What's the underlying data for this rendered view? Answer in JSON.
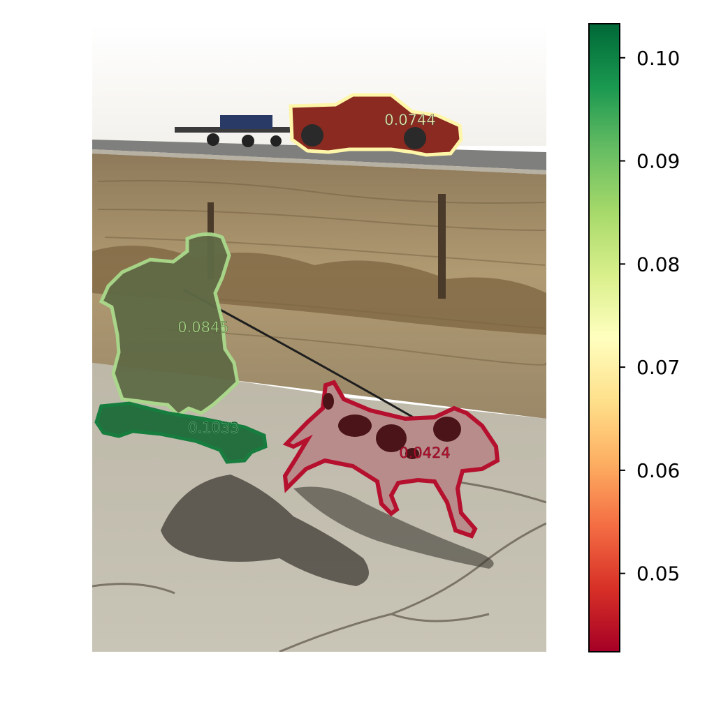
{
  "segments": [
    {
      "name": "truck",
      "score": "0.0744",
      "color": "#fef6a8"
    },
    {
      "name": "person",
      "score": "0.0845",
      "color": "#a9d98b"
    },
    {
      "name": "skateboard",
      "score": "0.1033",
      "color": "#0f7a3a"
    },
    {
      "name": "dog",
      "score": "0.0424",
      "color": "#b5102e"
    }
  ],
  "colorbar": {
    "colormap": "RdYlGn",
    "range": [
      0.0424,
      0.1033
    ],
    "ticks": [
      "0.05",
      "0.06",
      "0.07",
      "0.08",
      "0.09",
      "0.10"
    ],
    "tick_values": [
      0.05,
      0.06,
      0.07,
      0.08,
      0.09,
      0.1
    ]
  }
}
